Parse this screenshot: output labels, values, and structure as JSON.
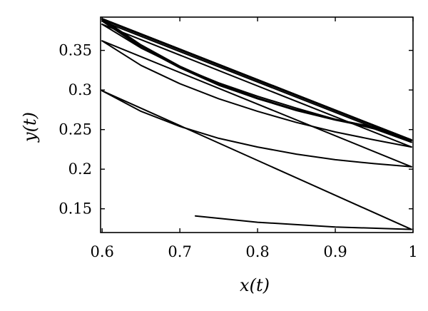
{
  "chart_data": {
    "type": "line",
    "title": "",
    "xlabel": "x(t)",
    "ylabel": "y(t)",
    "xlim": [
      0.598,
      1.0
    ],
    "ylim": [
      0.12,
      0.392
    ],
    "xticks": [
      0.6,
      0.7,
      0.8,
      0.9,
      1.0
    ],
    "xtick_labels": [
      "0.6",
      "0.7",
      "0.8",
      "0.9",
      "1"
    ],
    "yticks": [
      0.15,
      0.2,
      0.25,
      0.3,
      0.35
    ],
    "ytick_labels": [
      "0.15",
      "0.2",
      "0.25",
      "0.3",
      "0.35"
    ],
    "grid": false,
    "legend": "none",
    "series": [
      {
        "x": [
          0.72,
          0.8,
          0.9,
          0.998
        ],
        "y": [
          0.141,
          0.133,
          0.127,
          0.124
        ]
      },
      {
        "x": [
          0.998,
          0.6
        ],
        "y": [
          0.124,
          0.299
        ]
      },
      {
        "x": [
          0.6,
          0.65,
          0.7,
          0.75,
          0.8,
          0.85,
          0.9,
          0.95,
          0.998
        ],
        "y": [
          0.299,
          0.273,
          0.254,
          0.239,
          0.228,
          0.219,
          0.212,
          0.207,
          0.203
        ]
      },
      {
        "x": [
          0.998,
          0.6
        ],
        "y": [
          0.203,
          0.362
        ]
      },
      {
        "x": [
          0.6,
          0.65,
          0.7,
          0.75,
          0.8,
          0.85,
          0.9,
          0.95,
          0.998
        ],
        "y": [
          0.362,
          0.331,
          0.308,
          0.289,
          0.273,
          0.259,
          0.247,
          0.237,
          0.228
        ]
      },
      {
        "x": [
          0.998,
          0.6
        ],
        "y": [
          0.228,
          0.383
        ]
      },
      {
        "x": [
          0.6,
          0.65,
          0.7,
          0.75,
          0.8,
          0.85,
          0.9,
          0.95,
          0.998
        ],
        "y": [
          0.383,
          0.353,
          0.329,
          0.309,
          0.292,
          0.277,
          0.263,
          0.251,
          0.234
        ]
      },
      {
        "x": [
          0.998,
          0.6
        ],
        "y": [
          0.234,
          0.387
        ]
      },
      {
        "x": [
          0.6,
          0.65,
          0.7,
          0.75,
          0.8,
          0.85,
          0.9,
          0.95,
          0.998
        ],
        "y": [
          0.387,
          0.354,
          0.328,
          0.306,
          0.289,
          0.274,
          0.262,
          0.252,
          0.236
        ]
      },
      {
        "x": [
          0.998,
          0.6
        ],
        "y": [
          0.236,
          0.389
        ]
      },
      {
        "x": [
          0.6,
          0.65,
          0.7,
          0.75,
          0.8,
          0.85,
          0.9,
          0.95,
          0.998
        ],
        "y": [
          0.389,
          0.356,
          0.329,
          0.307,
          0.289,
          0.275,
          0.263,
          0.253,
          0.237
        ]
      },
      {
        "x": [
          0.998,
          0.6
        ],
        "y": [
          0.237,
          0.39
        ]
      },
      {
        "x": [
          0.6,
          0.65,
          0.7,
          0.75,
          0.8,
          0.85,
          0.9,
          0.95,
          0.998
        ],
        "y": [
          0.39,
          0.357,
          0.33,
          0.308,
          0.29,
          0.275,
          0.263,
          0.253,
          0.237
        ]
      },
      {
        "x": [
          0.998,
          0.6
        ],
        "y": [
          0.237,
          0.39
        ]
      }
    ]
  }
}
